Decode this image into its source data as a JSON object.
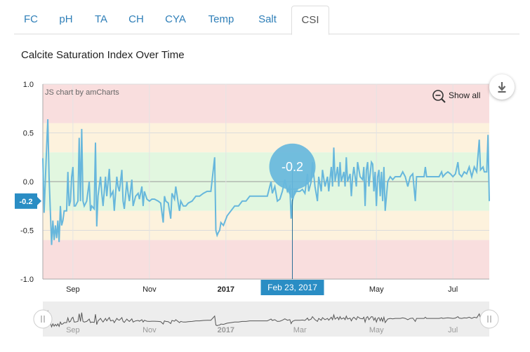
{
  "tabs": [
    {
      "label": "FC",
      "active": false
    },
    {
      "label": "pH",
      "active": false
    },
    {
      "label": "TA",
      "active": false
    },
    {
      "label": "CH",
      "active": false
    },
    {
      "label": "CYA",
      "active": false
    },
    {
      "label": "Temp",
      "active": false
    },
    {
      "label": "Salt",
      "active": false
    },
    {
      "label": "CSI",
      "active": true
    }
  ],
  "title": "Calcite Saturation Index Over Time",
  "credit": "JS chart by amCharts",
  "show_all_label": "Show all",
  "icons": {
    "zoom_out": "zoom-out-icon",
    "download": "download-icon",
    "grip": "grip-icon"
  },
  "colors": {
    "line": "#67b7dc",
    "band_red": "#f9dede",
    "band_yellow": "#fdf2dd",
    "band_green": "#e2f7e0",
    "badge": "#2a8dc4",
    "tab_text": "#2f7fb8"
  },
  "tooltip": {
    "value_label": "-0.2",
    "date_label": "Feb 23, 2017",
    "x": "2017-02-23",
    "y": -0.2
  },
  "chart_data": {
    "type": "line",
    "title": "Calcite Saturation Index Over Time",
    "xlabel": "",
    "ylabel": "",
    "ylim": [
      -1.0,
      1.0
    ],
    "xlim": [
      "2016-08-08",
      "2017-07-30"
    ],
    "y_ticks": [
      "1.0",
      "0.5",
      "0.0",
      "-0.5",
      "-1.0"
    ],
    "x_ticks": [
      {
        "label": "Sep",
        "date": "2016-09-01",
        "bold": false
      },
      {
        "label": "Nov",
        "date": "2016-11-01",
        "bold": false
      },
      {
        "label": "2017",
        "date": "2017-01-01",
        "bold": true
      },
      {
        "label": "May",
        "date": "2017-05-01",
        "bold": false
      },
      {
        "label": "Jul",
        "date": "2017-07-01",
        "bold": false
      }
    ],
    "scrollbar_ticks": [
      "Sep",
      "Nov",
      "2017",
      "Mar",
      "May",
      "Jul"
    ],
    "bands": [
      {
        "from": 0.6,
        "to": 1.0,
        "color": "red"
      },
      {
        "from": 0.3,
        "to": 0.6,
        "color": "yellow"
      },
      {
        "from": -0.3,
        "to": 0.3,
        "color": "green"
      },
      {
        "from": -0.6,
        "to": -0.3,
        "color": "yellow"
      },
      {
        "from": -1.0,
        "to": -0.6,
        "color": "red"
      }
    ],
    "axis_badge": "-0.2",
    "grid": true,
    "series": [
      {
        "points": [
          [
            "2016-08-08",
            0.24
          ],
          [
            "2016-08-09",
            -0.32
          ],
          [
            "2016-08-11",
            0.35
          ],
          [
            "2016-08-12",
            0.64
          ],
          [
            "2016-08-13",
            0.05
          ],
          [
            "2016-08-14",
            -0.3
          ],
          [
            "2016-08-15",
            -0.65
          ],
          [
            "2016-08-16",
            -0.4
          ],
          [
            "2016-08-17",
            -0.6
          ],
          [
            "2016-08-18",
            -0.45
          ],
          [
            "2016-08-19",
            -0.58
          ],
          [
            "2016-08-20",
            -0.4
          ],
          [
            "2016-08-21",
            -0.62
          ],
          [
            "2016-08-22",
            -0.25
          ],
          [
            "2016-08-23",
            -0.45
          ],
          [
            "2016-08-24",
            -0.4
          ],
          [
            "2016-08-25",
            -0.3
          ],
          [
            "2016-08-27",
            -0.3
          ],
          [
            "2016-08-28",
            0.1
          ],
          [
            "2016-08-29",
            -0.25
          ],
          [
            "2016-08-30",
            -0.2
          ],
          [
            "2016-08-31",
            0.05
          ],
          [
            "2016-09-01",
            0.15
          ],
          [
            "2016-09-02",
            -0.25
          ],
          [
            "2016-09-03",
            -0.25
          ],
          [
            "2016-09-05",
            -0.2
          ],
          [
            "2016-09-06",
            0.45
          ],
          [
            "2016-09-07",
            -0.2
          ],
          [
            "2016-09-08",
            0.54
          ],
          [
            "2016-09-09",
            -0.2
          ],
          [
            "2016-09-10",
            -0.25
          ],
          [
            "2016-09-12",
            -0.2
          ],
          [
            "2016-09-14",
            0.0
          ],
          [
            "2016-09-15",
            -0.3
          ],
          [
            "2016-09-16",
            -0.25
          ],
          [
            "2016-09-18",
            -0.28
          ],
          [
            "2016-09-19",
            0.4
          ],
          [
            "2016-09-20",
            -0.46
          ],
          [
            "2016-09-21",
            -0.15
          ],
          [
            "2016-09-23",
            0.05
          ],
          [
            "2016-09-24",
            -0.12
          ],
          [
            "2016-09-25",
            -0.25
          ],
          [
            "2016-09-27",
            0.05
          ],
          [
            "2016-09-28",
            -0.15
          ],
          [
            "2016-09-30",
            0.13
          ],
          [
            "2016-10-01",
            -0.15
          ],
          [
            "2016-10-03",
            -0.1
          ],
          [
            "2016-10-04",
            -0.3
          ],
          [
            "2016-10-06",
            0.05
          ],
          [
            "2016-10-07",
            -0.05
          ],
          [
            "2016-10-08",
            -0.1
          ],
          [
            "2016-10-10",
            0.12
          ],
          [
            "2016-10-11",
            -0.2
          ],
          [
            "2016-10-12",
            -0.28
          ],
          [
            "2016-10-14",
            0.0
          ],
          [
            "2016-10-15",
            -0.12
          ],
          [
            "2016-10-16",
            -0.2
          ],
          [
            "2016-10-18",
            0.02
          ],
          [
            "2016-10-19",
            -0.25
          ],
          [
            "2016-10-21",
            -0.15
          ],
          [
            "2016-10-23",
            -0.12
          ],
          [
            "2016-10-24",
            -0.18
          ],
          [
            "2016-10-26",
            -0.05
          ],
          [
            "2016-10-27",
            -0.25
          ],
          [
            "2016-10-28",
            -0.1
          ],
          [
            "2016-10-30",
            -0.18
          ],
          [
            "2016-11-01",
            -0.2
          ],
          [
            "2016-11-03",
            -0.18
          ],
          [
            "2016-11-05",
            -0.18
          ],
          [
            "2016-11-08",
            -0.2
          ],
          [
            "2016-11-10",
            -0.22
          ],
          [
            "2016-11-12",
            -0.42
          ],
          [
            "2016-11-13",
            -0.15
          ],
          [
            "2016-11-14",
            -0.2
          ],
          [
            "2016-11-16",
            -0.22
          ],
          [
            "2016-11-18",
            -0.38
          ],
          [
            "2016-11-19",
            -0.12
          ],
          [
            "2016-11-21",
            -0.18
          ],
          [
            "2016-11-22",
            -0.05
          ],
          [
            "2016-11-24",
            -0.22
          ],
          [
            "2016-11-25",
            -0.3
          ],
          [
            "2016-11-26",
            -0.2
          ],
          [
            "2016-11-28",
            -0.25
          ],
          [
            "2016-11-30",
            -0.25
          ],
          [
            "2016-12-02",
            -0.22
          ],
          [
            "2016-12-05",
            -0.2
          ],
          [
            "2016-12-08",
            -0.15
          ],
          [
            "2016-12-11",
            -0.15
          ],
          [
            "2016-12-14",
            -0.12
          ],
          [
            "2016-12-17",
            -0.1
          ],
          [
            "2016-12-20",
            -0.1
          ],
          [
            "2016-12-23",
            0.25
          ],
          [
            "2016-12-24",
            -0.5
          ],
          [
            "2016-12-25",
            -0.55
          ],
          [
            "2016-12-26",
            -0.52
          ],
          [
            "2016-12-27",
            -0.5
          ],
          [
            "2016-12-28",
            -0.42
          ],
          [
            "2016-12-30",
            -0.45
          ],
          [
            "2017-01-02",
            -0.35
          ],
          [
            "2017-01-05",
            -0.3
          ],
          [
            "2017-01-08",
            -0.25
          ],
          [
            "2017-01-11",
            -0.25
          ],
          [
            "2017-01-14",
            -0.2
          ],
          [
            "2017-01-17",
            -0.2
          ],
          [
            "2017-01-20",
            -0.15
          ],
          [
            "2017-01-23",
            -0.15
          ],
          [
            "2017-01-27",
            -0.15
          ],
          [
            "2017-01-31",
            -0.15
          ],
          [
            "2017-02-03",
            -0.15
          ],
          [
            "2017-02-06",
            0.0
          ],
          [
            "2017-02-07",
            -0.12
          ],
          [
            "2017-02-09",
            -0.05
          ],
          [
            "2017-02-11",
            -0.2
          ],
          [
            "2017-02-13",
            -0.18
          ],
          [
            "2017-02-15",
            -0.1
          ],
          [
            "2017-02-17",
            0.02
          ],
          [
            "2017-02-19",
            -0.1
          ],
          [
            "2017-02-21",
            -0.05
          ],
          [
            "2017-02-22",
            -0.38
          ],
          [
            "2017-02-23",
            -0.2
          ],
          [
            "2017-02-25",
            -0.1
          ],
          [
            "2017-02-27",
            -0.1
          ],
          [
            "2017-03-01",
            -0.1
          ],
          [
            "2017-03-03",
            -0.08
          ],
          [
            "2017-03-05",
            -0.12
          ],
          [
            "2017-03-07",
            0.08
          ],
          [
            "2017-03-08",
            -0.1
          ],
          [
            "2017-03-10",
            0.0
          ],
          [
            "2017-03-11",
            0.2
          ],
          [
            "2017-03-13",
            -0.05
          ],
          [
            "2017-03-15",
            -0.2
          ],
          [
            "2017-03-16",
            0.05
          ],
          [
            "2017-03-18",
            -0.1
          ],
          [
            "2017-03-19",
            0.12
          ],
          [
            "2017-03-21",
            -0.05
          ],
          [
            "2017-03-23",
            0.05
          ],
          [
            "2017-03-24",
            -0.1
          ],
          [
            "2017-03-26",
            0.15
          ],
          [
            "2017-03-27",
            -0.05
          ],
          [
            "2017-03-28",
            0.35
          ],
          [
            "2017-03-29",
            0.0
          ],
          [
            "2017-03-31",
            0.15
          ],
          [
            "2017-04-01",
            -0.05
          ],
          [
            "2017-04-02",
            0.2
          ],
          [
            "2017-04-03",
            0.0
          ],
          [
            "2017-04-05",
            0.1
          ],
          [
            "2017-04-06",
            -0.05
          ],
          [
            "2017-04-07",
            0.25
          ],
          [
            "2017-04-08",
            0.0
          ],
          [
            "2017-04-10",
            0.08
          ],
          [
            "2017-04-11",
            -0.15
          ],
          [
            "2017-04-12",
            0.05
          ],
          [
            "2017-04-13",
            0.15
          ],
          [
            "2017-04-15",
            -0.05
          ],
          [
            "2017-04-16",
            0.2
          ],
          [
            "2017-04-18",
            0.05
          ],
          [
            "2017-04-20",
            0.02
          ],
          [
            "2017-04-21",
            0.15
          ],
          [
            "2017-04-22",
            -0.25
          ],
          [
            "2017-04-23",
            0.12
          ],
          [
            "2017-04-24",
            0.2
          ],
          [
            "2017-04-25",
            -0.05
          ],
          [
            "2017-04-27",
            0.2
          ],
          [
            "2017-04-28",
            0.18
          ],
          [
            "2017-04-29",
            -0.1
          ],
          [
            "2017-04-30",
            0.1
          ],
          [
            "2017-05-01",
            -0.25
          ],
          [
            "2017-05-02",
            0.05
          ],
          [
            "2017-05-03",
            0.12
          ],
          [
            "2017-05-04",
            -0.15
          ],
          [
            "2017-05-05",
            0.1
          ],
          [
            "2017-05-06",
            -0.2
          ],
          [
            "2017-05-07",
            0.15
          ],
          [
            "2017-05-08",
            -0.3
          ],
          [
            "2017-05-10",
            0.0
          ],
          [
            "2017-05-12",
            0.05
          ],
          [
            "2017-05-14",
            0.02
          ],
          [
            "2017-05-16",
            0.05
          ],
          [
            "2017-05-18",
            0.05
          ],
          [
            "2017-05-20",
            0.05
          ],
          [
            "2017-05-22",
            0.1
          ],
          [
            "2017-05-24",
            0.05
          ],
          [
            "2017-05-26",
            -0.05
          ],
          [
            "2017-05-28",
            0.05
          ],
          [
            "2017-05-30",
            0.08
          ],
          [
            "2017-06-01",
            -0.2
          ],
          [
            "2017-06-02",
            0.05
          ],
          [
            "2017-06-04",
            0.05
          ],
          [
            "2017-06-06",
            0.05
          ],
          [
            "2017-06-08",
            0.05
          ],
          [
            "2017-06-09",
            0.15
          ],
          [
            "2017-06-10",
            0.05
          ],
          [
            "2017-06-12",
            0.05
          ],
          [
            "2017-06-14",
            0.05
          ],
          [
            "2017-06-16",
            0.05
          ],
          [
            "2017-06-18",
            0.05
          ],
          [
            "2017-06-20",
            0.05
          ],
          [
            "2017-06-22",
            0.1
          ],
          [
            "2017-06-23",
            0.05
          ],
          [
            "2017-06-25",
            0.08
          ],
          [
            "2017-06-27",
            0.1
          ],
          [
            "2017-06-29",
            0.08
          ],
          [
            "2017-07-01",
            0.05
          ],
          [
            "2017-07-03",
            0.08
          ],
          [
            "2017-07-05",
            0.2
          ],
          [
            "2017-07-06",
            0.08
          ],
          [
            "2017-07-08",
            0.05
          ],
          [
            "2017-07-10",
            0.1
          ],
          [
            "2017-07-12",
            0.08
          ],
          [
            "2017-07-14",
            0.15
          ],
          [
            "2017-07-16",
            0.05
          ],
          [
            "2017-07-18",
            0.15
          ],
          [
            "2017-07-20",
            0.1
          ],
          [
            "2017-07-22",
            0.43
          ],
          [
            "2017-07-23",
            0.12
          ],
          [
            "2017-07-25",
            0.15
          ],
          [
            "2017-07-26",
            0.1
          ],
          [
            "2017-07-28",
            0.1
          ],
          [
            "2017-07-29",
            0.48
          ],
          [
            "2017-07-30",
            -0.2
          ]
        ]
      }
    ]
  }
}
